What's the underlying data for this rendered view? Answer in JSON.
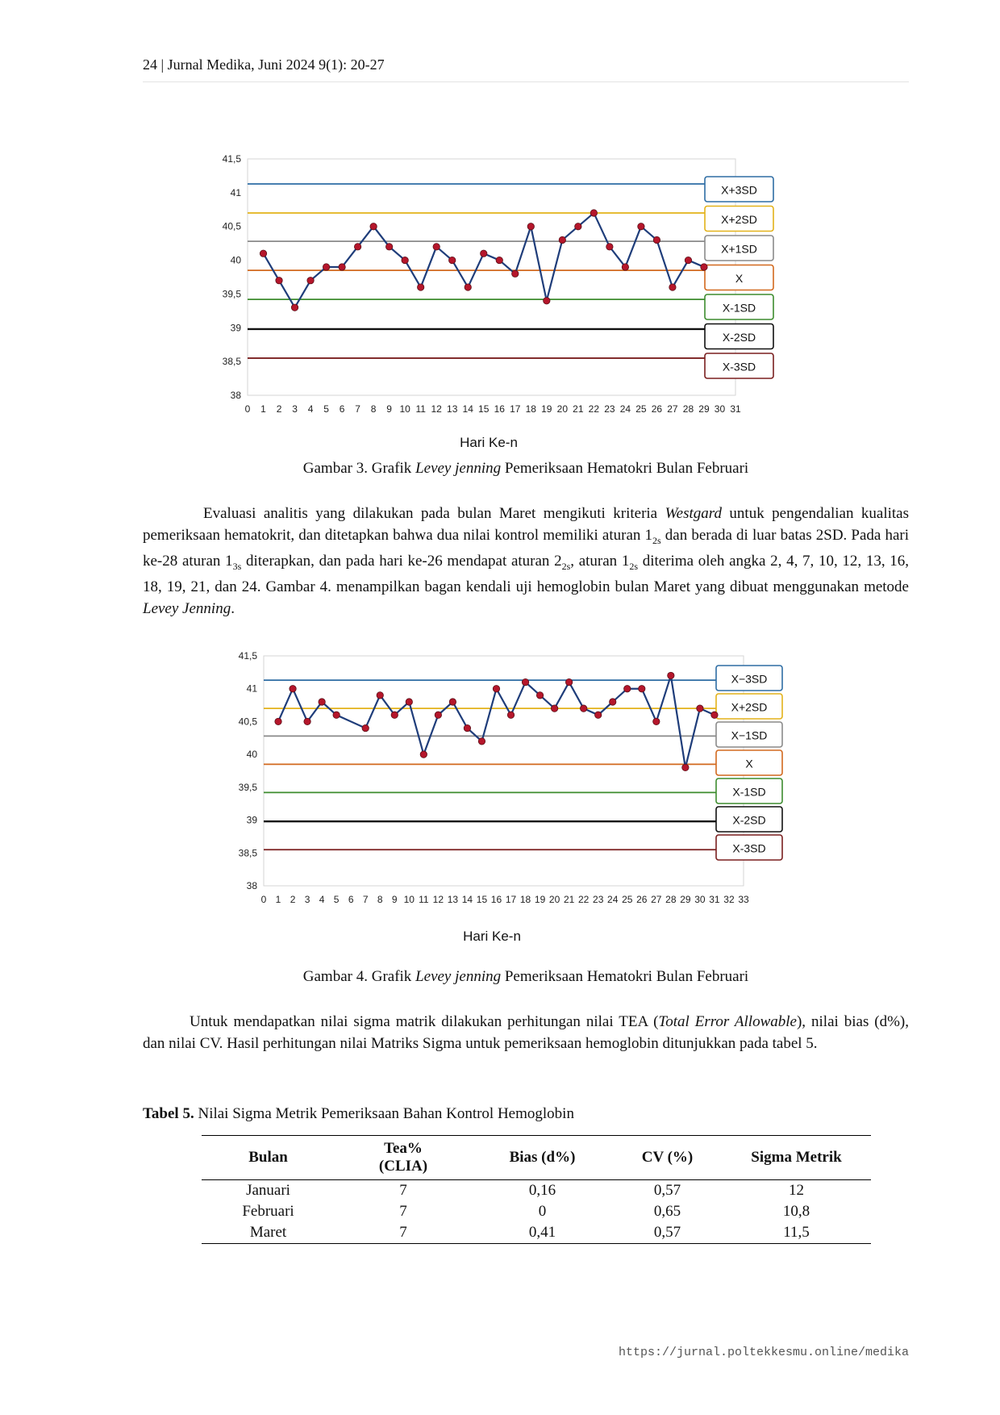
{
  "header": {
    "text": "24 | Jurnal Medika, Juni 2024 9(1): 20-27"
  },
  "figure3": {
    "caption_prefix": "Gambar 3. Grafik ",
    "caption_italic": "Levey jenning",
    "caption_suffix": " Pemeriksaan Hematokri Bulan Februari"
  },
  "paragraph1": {
    "t1": "Evaluasi analitis yang dilakukan pada bulan Maret mengikuti kriteria ",
    "t1_italic": "Westgard",
    "t2": " untuk pengendalian kualitas pemeriksaan hematokrit, dan ditetapkan bahwa dua nilai kontrol memiliki aturan 1",
    "sub_2s_a": "2s",
    "t3": " dan berada di luar batas 2SD. Pada hari ke-28 aturan 1",
    "sub_3s": "3s",
    "t4": " diterapkan, dan pada hari ke-26 mendapat aturan 2",
    "sub_2s_b": "2s",
    "t5": ", aturan 1",
    "sub_2s_c": "2s",
    "t6": " diterima oleh angka 2, 4, 7, 10, 12, 13, 16, 18, 19, 21, dan 24. Gambar 4. menampilkan bagan kendali uji hemoglobin bulan Maret yang dibuat menggunakan metode ",
    "t6_italic": "Levey Jenning",
    "t7": "."
  },
  "figure4": {
    "caption_prefix": "Gambar 4. Grafik ",
    "caption_italic": "Levey jenning",
    "caption_suffix": " Pemeriksaan Hematokri Bulan Februari"
  },
  "paragraph2": {
    "t1": "Untuk mendapatkan nilai sigma matrik dilakukan perhitungan nilai TEA (",
    "t1_italic": "Total Error Allowable",
    "t2": "), nilai bias (d%), dan nilai CV. Hasil perhitungan nilai Matriks Sigma untuk pemeriksaan hemoglobin ditunjukkan pada tabel 5."
  },
  "table5": {
    "title_bold": "Tabel 5.",
    "title_rest": " Nilai Sigma Metrik Pemeriksaan Bahan Kontrol Hemoglobin",
    "headers": [
      "Bulan",
      "Tea%",
      "(CLIA)",
      "Bias (d%)",
      "CV (%)",
      "Sigma Metrik"
    ],
    "rows": [
      [
        "Januari",
        "7",
        "0,16",
        "0,57",
        "12"
      ],
      [
        "Februari",
        "7",
        "0",
        "0,65",
        "10,8"
      ],
      [
        "Maret",
        "7",
        "0,41",
        "0,57",
        "11,5"
      ]
    ]
  },
  "footer": {
    "url": "https://jurnal.poltekkesmu.online/medika"
  },
  "chart_data": [
    {
      "type": "line",
      "xlabel": "Hari Ke-n",
      "ylabel": "",
      "ylim": [
        38,
        41.5
      ],
      "yticks": [
        "41,5",
        "41",
        "40,5",
        "40",
        "39,5",
        "39",
        "38,5",
        "38"
      ],
      "xlim": [
        0,
        31
      ],
      "grid": false,
      "legend_position": "right",
      "x": [
        1,
        2,
        3,
        4,
        5,
        6,
        7,
        8,
        9,
        10,
        11,
        12,
        13,
        14,
        15,
        16,
        17,
        18,
        19,
        20,
        21,
        22,
        23,
        24,
        25,
        26,
        27,
        28,
        29
      ],
      "values": [
        40.1,
        39.7,
        39.3,
        39.7,
        39.9,
        39.9,
        40.2,
        40.5,
        40.2,
        40.0,
        39.6,
        40.2,
        40.0,
        39.6,
        40.1,
        40.0,
        39.8,
        40.5,
        39.4,
        40.3,
        40.5,
        40.7,
        40.2,
        39.9,
        40.5,
        40.3,
        39.6,
        40.0,
        39.9
      ],
      "line_color": "#1f3d7a",
      "marker_color": "#b5162b",
      "reference_lines": [
        {
          "label": "X+3SD",
          "value": 41.13,
          "color": "#2e6da4"
        },
        {
          "label": "X+2SD",
          "value": 40.7,
          "color": "#e3b21a"
        },
        {
          "label": "X+1SD",
          "value": 40.28,
          "color": "#8a8a8a"
        },
        {
          "label": "X",
          "value": 39.85,
          "color": "#d2691e"
        },
        {
          "label": "X-1SD",
          "value": 39.42,
          "color": "#3d8c2e"
        },
        {
          "label": "X-2SD",
          "value": 38.98,
          "color": "#111111"
        },
        {
          "label": "X-3SD",
          "value": 38.55,
          "color": "#7a1f1f"
        }
      ]
    },
    {
      "type": "line",
      "xlabel": "Hari Ke-n",
      "ylabel": "",
      "ylim": [
        38,
        41.5
      ],
      "yticks": [
        "41,5",
        "41",
        "40,5",
        "40",
        "39,5",
        "39",
        "38,5",
        "38"
      ],
      "xlim": [
        0,
        33
      ],
      "grid": false,
      "legend_position": "right",
      "x": [
        1,
        2,
        3,
        4,
        5,
        7,
        8,
        9,
        10,
        11,
        12,
        13,
        14,
        15,
        16,
        17,
        18,
        19,
        20,
        21,
        22,
        23,
        24,
        25,
        26,
        27,
        28,
        29,
        30,
        31
      ],
      "values": [
        40.5,
        41.0,
        40.5,
        40.8,
        40.6,
        40.4,
        40.9,
        40.6,
        40.8,
        40.0,
        40.6,
        40.8,
        40.4,
        40.2,
        41.0,
        40.6,
        41.1,
        40.9,
        40.7,
        41.1,
        40.7,
        40.6,
        40.8,
        41.0,
        41.0,
        40.5,
        41.2,
        39.8,
        40.7,
        40.6
      ],
      "line_color": "#1f3d7a",
      "marker_color": "#b5162b",
      "reference_lines": [
        {
          "label": "X−3SD",
          "value": 41.13,
          "color": "#2e6da4"
        },
        {
          "label": "X+2SD",
          "value": 40.7,
          "color": "#e3b21a"
        },
        {
          "label": "X−1SD",
          "value": 40.28,
          "color": "#8a8a8a"
        },
        {
          "label": "X",
          "value": 39.85,
          "color": "#d2691e"
        },
        {
          "label": "X-1SD",
          "value": 39.42,
          "color": "#3d8c2e"
        },
        {
          "label": "X-2SD",
          "value": 38.98,
          "color": "#111111"
        },
        {
          "label": "X-3SD",
          "value": 38.55,
          "color": "#7a1f1f"
        }
      ]
    }
  ]
}
